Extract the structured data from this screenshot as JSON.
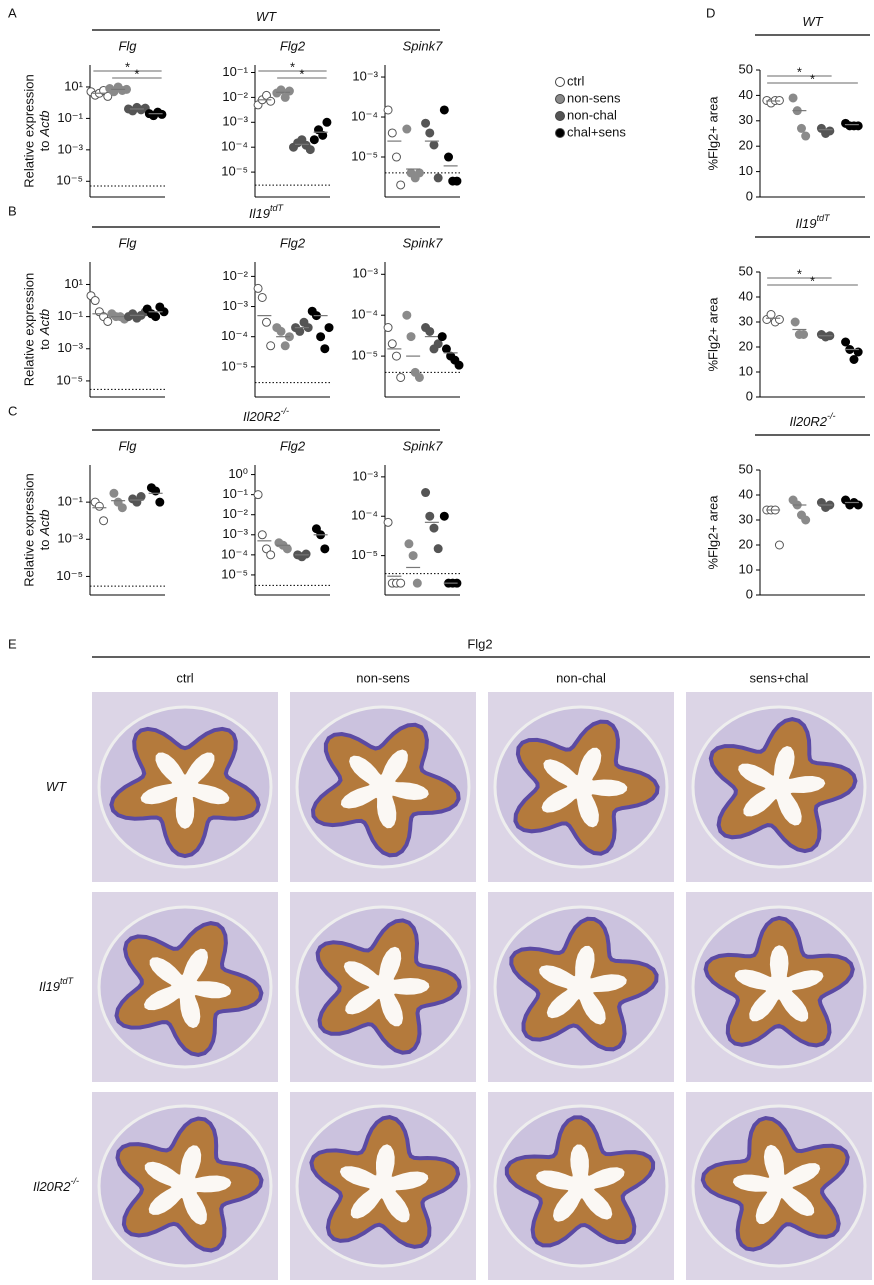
{
  "chart_data": [
    {
      "type": "dot",
      "title": "Flg",
      "header": {
        "base": "WT"
      },
      "ylabel": {
        "line1": "Relative expression",
        "line2": "to",
        "gene": "Actb"
      },
      "log": true,
      "ylim": [
        1e-06,
        250
      ],
      "yticks": [
        {
          "value": 10,
          "label": "10¹"
        },
        {
          "value": 0.1,
          "label": "10⁻¹"
        },
        {
          "value": 0.001,
          "label": "10⁻³"
        },
        {
          "value": 1e-05,
          "label": "10⁻⁵"
        }
      ],
      "threshold": 5e-06,
      "groups": [
        [
          5,
          3,
          4,
          6,
          2.5
        ],
        [
          8,
          5,
          10,
          6,
          7
        ],
        [
          0.4,
          0.3,
          0.5,
          0.35,
          0.45
        ],
        [
          0.2,
          0.15,
          0.25,
          0.18
        ]
      ],
      "means": [
        4,
        7,
        0.4,
        0.2
      ],
      "significance": [
        {
          "from": "ctrl",
          "to": "chal+sens",
          "text": "*"
        },
        {
          "from": "non-sens",
          "to": "chal+sens",
          "text": "*"
        }
      ]
    },
    {
      "type": "dot",
      "title": "Flg2",
      "log": true,
      "ylim": [
        1e-06,
        0.2
      ],
      "yticks": [
        {
          "value": 0.1,
          "label": "10⁻¹"
        },
        {
          "value": 0.01,
          "label": "10⁻²"
        },
        {
          "value": 0.001,
          "label": "10⁻³"
        },
        {
          "value": 0.0001,
          "label": "10⁻⁴"
        },
        {
          "value": 1e-05,
          "label": "10⁻⁵"
        }
      ],
      "threshold": 3e-06,
      "groups": [
        [
          0.005,
          0.008,
          0.012,
          0.007
        ],
        [
          0.015,
          0.02,
          0.01,
          0.018
        ],
        [
          0.0001,
          0.00015,
          0.0002,
          0.00012,
          8e-05
        ],
        [
          0.0002,
          0.0005,
          0.0003,
          0.001
        ]
      ],
      "means": [
        0.008,
        0.016,
        0.00013,
        0.0004
      ],
      "significance": [
        {
          "from": "ctrl",
          "to": "chal+sens",
          "text": "*"
        },
        {
          "from": "non-sens",
          "to": "chal+sens",
          "text": "*"
        }
      ]
    },
    {
      "type": "dot",
      "title": "Spink7",
      "log": true,
      "ylim": [
        1e-06,
        0.002
      ],
      "yticks": [
        {
          "value": 0.001,
          "label": "10⁻³"
        },
        {
          "value": 0.0001,
          "label": "10⁻⁴"
        },
        {
          "value": 1e-05,
          "label": "10⁻⁵"
        }
      ],
      "threshold": 4e-06,
      "groups": [
        [
          0.00015,
          4e-05,
          1e-05,
          2e-06
        ],
        [
          5e-05,
          4e-06,
          3e-06,
          4e-06
        ],
        [
          7e-05,
          4e-05,
          2e-05,
          3e-06
        ],
        [
          0.00015,
          1e-05,
          2.5e-06,
          2.5e-06
        ]
      ],
      "means": [
        2.5e-05,
        5e-06,
        2.5e-05,
        6e-06
      ]
    },
    {
      "type": "dot",
      "title": "Flg",
      "header": {
        "base": "Il19",
        "sup": "tdT"
      },
      "ylabel": {
        "line1": "Relative expression",
        "line2": "to",
        "gene": "Actb"
      },
      "log": true,
      "ylim": [
        1e-06,
        250
      ],
      "yticks": [
        {
          "value": 10,
          "label": "10¹"
        },
        {
          "value": 0.1,
          "label": "10⁻¹"
        },
        {
          "value": 0.001,
          "label": "10⁻³"
        },
        {
          "value": 1e-05,
          "label": "10⁻⁵"
        }
      ],
      "threshold": 3e-06,
      "groups": [
        [
          2,
          1,
          0.2,
          0.1,
          0.05
        ],
        [
          0.15,
          0.1,
          0.1,
          0.07
        ],
        [
          0.1,
          0.15,
          0.08,
          0.12,
          0.2
        ],
        [
          0.3,
          0.15,
          0.1,
          0.4,
          0.2
        ]
      ],
      "means": [
        0.15,
        0.1,
        0.12,
        0.2
      ]
    },
    {
      "type": "dot",
      "title": "Flg2",
      "log": true,
      "ylim": [
        1e-06,
        0.03
      ],
      "yticks": [
        {
          "value": 0.01,
          "label": "10⁻²"
        },
        {
          "value": 0.001,
          "label": "10⁻³"
        },
        {
          "value": 0.0001,
          "label": "10⁻⁴"
        },
        {
          "value": 1e-05,
          "label": "10⁻⁵"
        }
      ],
      "threshold": 3e-06,
      "groups": [
        [
          0.004,
          0.002,
          0.0003,
          5e-05
        ],
        [
          0.0002,
          0.00015,
          5e-05,
          0.0001
        ],
        [
          0.0002,
          0.00015,
          0.0003,
          0.0002
        ],
        [
          0.0007,
          0.0005,
          0.0001,
          4e-05,
          0.0002
        ]
      ],
      "means": [
        0.0005,
        0.0001,
        0.0002,
        0.0005
      ]
    },
    {
      "type": "dot",
      "title": "Spink7",
      "log": true,
      "ylim": [
        1e-06,
        0.002
      ],
      "yticks": [
        {
          "value": 0.001,
          "label": "10⁻³"
        },
        {
          "value": 0.0001,
          "label": "10⁻⁴"
        },
        {
          "value": 1e-05,
          "label": "10⁻⁵"
        }
      ],
      "threshold": 4e-06,
      "groups": [
        [
          5e-05,
          2e-05,
          1e-05,
          3e-06
        ],
        [
          0.0001,
          3e-05,
          4e-06,
          3e-06
        ],
        [
          5e-05,
          4e-05,
          1.5e-05,
          2e-05
        ],
        [
          3e-05,
          1.5e-05,
          1e-05,
          8e-06,
          6e-06
        ]
      ],
      "means": [
        1.5e-05,
        1e-05,
        3e-05,
        1.2e-05
      ]
    },
    {
      "type": "dot",
      "title": "Flg",
      "header": {
        "base": "Il20R2",
        "sup": "-/-"
      },
      "ylabel": {
        "line1": "Relative expression",
        "line2": "to",
        "gene": "Actb"
      },
      "log": true,
      "ylim": [
        1e-06,
        10
      ],
      "yticks": [
        {
          "value": 0.1,
          "label": "10⁻¹"
        },
        {
          "value": 0.001,
          "label": "10⁻³"
        },
        {
          "value": 1e-05,
          "label": "10⁻⁵"
        }
      ],
      "threshold": 3e-06,
      "groups": [
        [
          0.1,
          0.06,
          0.01
        ],
        [
          0.3,
          0.1,
          0.05
        ],
        [
          0.15,
          0.1,
          0.2
        ],
        [
          0.6,
          0.4,
          0.1
        ]
      ],
      "means": [
        0.05,
        0.12,
        0.13,
        0.3
      ]
    },
    {
      "type": "dot",
      "title": "Flg2",
      "log": true,
      "ylim": [
        1e-06,
        3
      ],
      "yticks": [
        {
          "value": 1,
          "label": "10⁰"
        },
        {
          "value": 0.1,
          "label": "10⁻¹"
        },
        {
          "value": 0.01,
          "label": "10⁻²"
        },
        {
          "value": 0.001,
          "label": "10⁻³"
        },
        {
          "value": 0.0001,
          "label": "10⁻⁴"
        },
        {
          "value": 1e-05,
          "label": "10⁻⁵"
        }
      ],
      "threshold": 3e-06,
      "groups": [
        [
          0.1,
          0.001,
          0.0002,
          0.0001
        ],
        [
          0.0004,
          0.0003,
          0.0002
        ],
        [
          0.0001,
          8e-05,
          0.00011
        ],
        [
          0.002,
          0.001,
          0.0002
        ]
      ],
      "means": [
        0.0005,
        0.0003,
        0.0001,
        0.001
      ]
    },
    {
      "type": "dot",
      "title": "Spink7",
      "log": true,
      "ylim": [
        1e-06,
        0.002
      ],
      "yticks": [
        {
          "value": 0.001,
          "label": "10⁻³"
        },
        {
          "value": 0.0001,
          "label": "10⁻⁴"
        },
        {
          "value": 1e-05,
          "label": "10⁻⁵"
        }
      ],
      "threshold": 3.5e-06,
      "groups": [
        [
          7e-05,
          2e-06,
          2e-06,
          2e-06
        ],
        [
          2e-05,
          1e-05,
          2e-06
        ],
        [
          0.0004,
          0.0001,
          5e-05,
          1.5e-05
        ],
        [
          0.0001,
          2e-06,
          2e-06,
          2e-06
        ]
      ],
      "means": [
        3e-06,
        5e-06,
        7e-05,
        2e-06
      ]
    },
    {
      "type": "dot",
      "title": "",
      "header": {
        "base": "WT"
      },
      "ylabel": "%Flg2+ area",
      "log": false,
      "ylim": [
        0,
        50
      ],
      "yticks": [
        0,
        10,
        20,
        30,
        40,
        50
      ],
      "groups": [
        [
          38,
          37,
          38,
          38
        ],
        [
          39,
          34,
          27,
          24
        ],
        [
          27,
          25,
          26
        ],
        [
          29,
          28,
          28,
          28
        ]
      ],
      "means": [
        37.8,
        34,
        26.5,
        28.5
      ],
      "significance": [
        {
          "from": "ctrl",
          "to": "non-chal",
          "text": "*"
        },
        {
          "from": "ctrl",
          "to": "chal+sens",
          "text": "*"
        }
      ]
    },
    {
      "type": "dot",
      "header": {
        "base": "Il19",
        "sup": "tdT"
      },
      "ylabel": "%Flg2+ area",
      "log": false,
      "ylim": [
        0,
        50
      ],
      "yticks": [
        0,
        10,
        20,
        30,
        40,
        50
      ],
      "groups": [
        [
          31,
          33,
          30,
          31
        ],
        [
          30,
          25,
          25
        ],
        [
          25,
          24,
          24.5
        ],
        [
          22,
          19,
          15,
          18
        ]
      ],
      "means": [
        31.5,
        27,
        24.5,
        19
      ],
      "significance": [
        {
          "from": "ctrl",
          "to": "non-chal",
          "text": "*"
        },
        {
          "from": "ctrl",
          "to": "chal+sens",
          "text": "*"
        }
      ]
    },
    {
      "type": "dot",
      "header": {
        "base": "Il20R2",
        "sup": "-/-"
      },
      "ylabel": "%Flg2+ area",
      "log": false,
      "ylim": [
        0,
        50
      ],
      "yticks": [
        0,
        10,
        20,
        30,
        40,
        50
      ],
      "groups": [
        [
          34,
          34,
          34,
          20
        ],
        [
          38,
          36,
          32,
          30
        ],
        [
          37,
          35,
          36
        ],
        [
          38,
          36,
          37,
          36
        ]
      ],
      "means": [
        34,
        36,
        36,
        37
      ]
    }
  ],
  "legend": [
    {
      "name": "ctrl",
      "color": "#ffffff"
    },
    {
      "name": "non-sens",
      "color": "#8a8a8a"
    },
    {
      "name": "non-chal",
      "color": "#555555"
    },
    {
      "name": "chal+sens",
      "color": "#000000"
    }
  ],
  "panel_labels": [
    "A",
    "B",
    "C",
    "D",
    "E"
  ],
  "histology": {
    "title": "Flg2",
    "columns": [
      "ctrl",
      "non-sens",
      "non-chal",
      "sens+chal"
    ],
    "rows": [
      {
        "base": "WT"
      },
      {
        "base": "Il19",
        "sup": "tdT"
      },
      {
        "base": "Il20R2",
        "sup": "-/-"
      }
    ]
  }
}
